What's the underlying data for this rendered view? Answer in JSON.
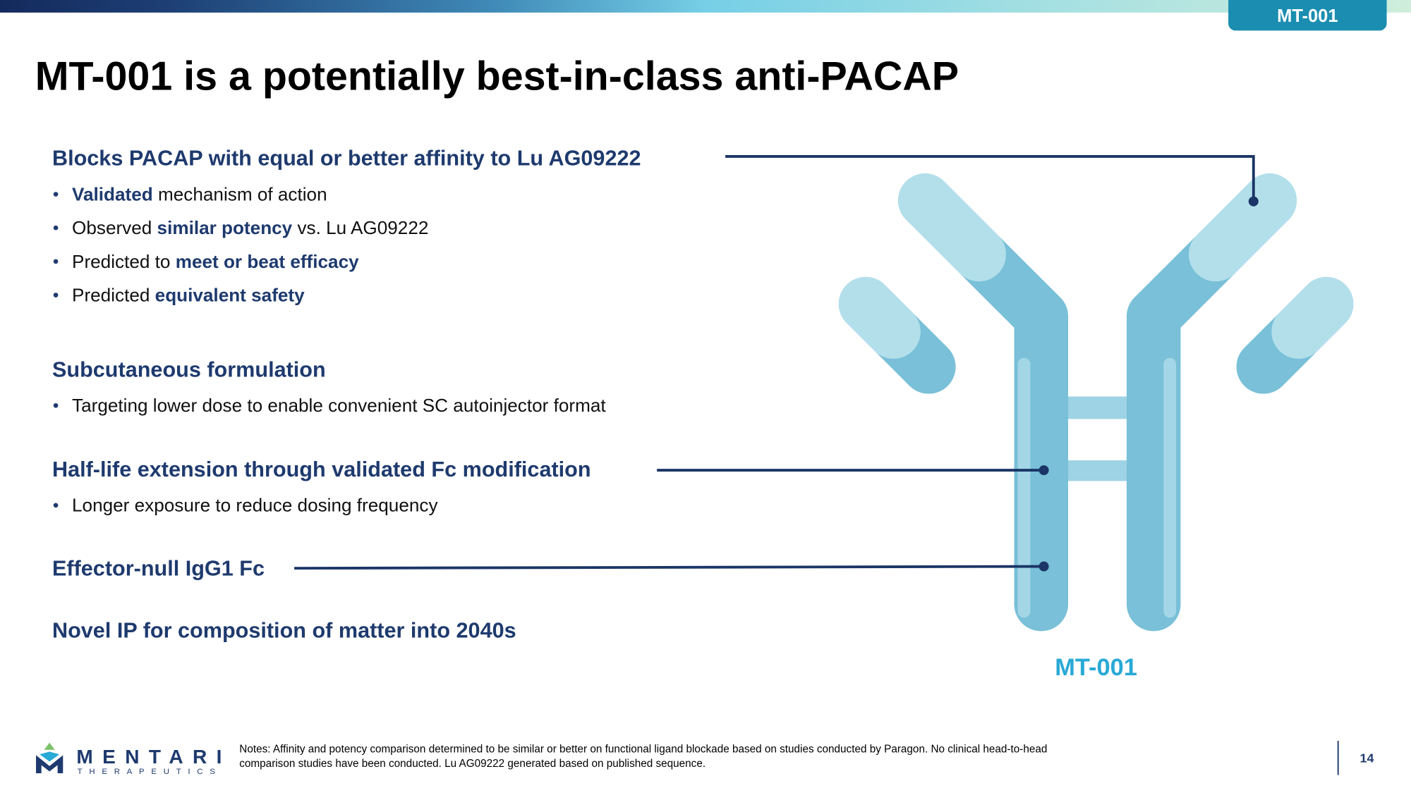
{
  "header": {
    "tag": "MT-001",
    "title": "MT-001 is a potentially best-in-class anti-PACAP"
  },
  "sections": [
    {
      "heading": "Blocks PACAP with equal or better affinity to Lu AG09222",
      "bullets": [
        [
          {
            "text": "Validated",
            "emphasis": true
          },
          {
            "text": " mechanism of action",
            "emphasis": false
          }
        ],
        [
          {
            "text": "Observed ",
            "emphasis": false
          },
          {
            "text": "similar potency",
            "emphasis": true
          },
          {
            "text": " vs. Lu AG09222",
            "emphasis": false
          }
        ],
        [
          {
            "text": "Predicted to ",
            "emphasis": false
          },
          {
            "text": "meet or beat efficacy",
            "emphasis": true
          }
        ],
        [
          {
            "text": "Predicted ",
            "emphasis": false
          },
          {
            "text": "equivalent safety",
            "emphasis": true
          }
        ]
      ]
    },
    {
      "heading": "Subcutaneous formulation",
      "bullets": [
        [
          {
            "text": "Targeting lower dose to enable convenient SC autoinjector format",
            "emphasis": false
          }
        ]
      ]
    },
    {
      "heading": "Half-life extension through validated Fc modification",
      "bullets": [
        [
          {
            "text": "Longer exposure to reduce dosing frequency",
            "emphasis": false
          }
        ]
      ]
    },
    {
      "heading": "Effector-null IgG1 Fc",
      "bullets": []
    },
    {
      "heading": "Novel IP for composition of matter into 2040s",
      "bullets": []
    }
  ],
  "figure": {
    "label": "MT-001"
  },
  "footer": {
    "logo_name": "MENTARI",
    "logo_subtitle": "THERAPEUTICS",
    "notes": [
      "Notes: Affinity and potency comparison determined to be similar or better on functional ligand blockade based on studies conducted by Paragon. No clinical head-to-head",
      "comparison studies have been conducted. Lu AG09222 generated based on published sequence."
    ],
    "page_number": "14"
  }
}
